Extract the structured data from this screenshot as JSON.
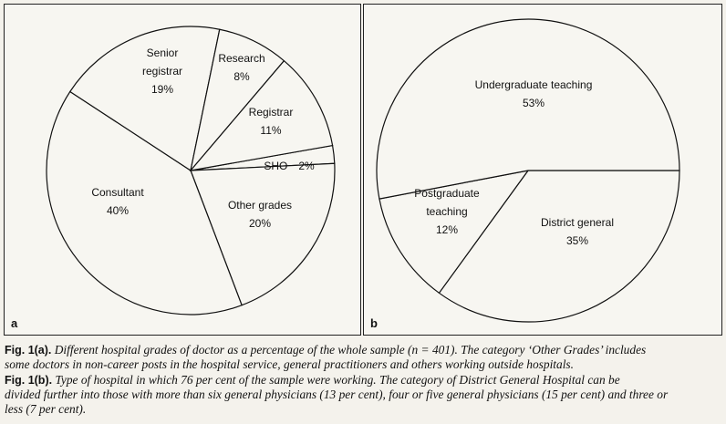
{
  "chart_data": [
    {
      "type": "pie",
      "panel_label": "a",
      "start_angle_deg": 10,
      "direction": "clockwise",
      "slices": [
        {
          "label_lines": [
            "SHO",
            "2%"
          ],
          "value": 2
        },
        {
          "label_lines": [
            "Other grades",
            "20%"
          ],
          "value": 20
        },
        {
          "label_lines": [
            "Consultant",
            "40%"
          ],
          "value": 40
        },
        {
          "label_lines": [
            "Senior",
            "registrar",
            "19%"
          ],
          "value": 19
        },
        {
          "label_lines": [
            "Research",
            "8%"
          ],
          "value": 8
        },
        {
          "label_lines": [
            "Registrar",
            "11%"
          ],
          "value": 11
        }
      ]
    },
    {
      "type": "pie",
      "panel_label": "b",
      "start_angle_deg": 0,
      "direction": "clockwise",
      "slices": [
        {
          "label_lines": [
            "District general",
            "35%"
          ],
          "value": 35
        },
        {
          "label_lines": [
            "Postgraduate",
            "teaching",
            "12%"
          ],
          "value": 12
        },
        {
          "label_lines": [
            "Undergraduate teaching",
            "53%"
          ],
          "value": 53
        }
      ]
    }
  ],
  "captions": [
    {
      "fig": "Fig. 1(a).",
      "lines": [
        "Different hospital grades of doctor as a percentage of the whole sample (n = 401). The category ‘Other Grades’ includes",
        "some doctors in non-career posts in the hospital service, general practitioners and others working outside hospitals."
      ]
    },
    {
      "fig": "Fig. 1(b).",
      "lines": [
        "Type of hospital in which 76 per cent of the sample were working. The category of District General Hospital can be",
        "divided further into those with more than six general physicians (13 per cent), four or five general physicians (15 per cent) and three or",
        "less (7 per cent)."
      ]
    }
  ],
  "colors": {
    "slice_fill": "#f7f6f1",
    "stroke": "#111111"
  }
}
